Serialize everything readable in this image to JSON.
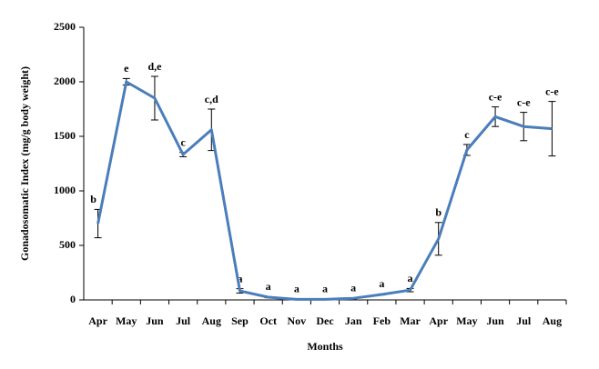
{
  "chart_data": {
    "type": "line",
    "x_label": "Months",
    "y_label": "Gonadosomatic Index (mg/g body weight)",
    "categories": [
      "Apr",
      "May",
      "Jun",
      "Jul",
      "Aug",
      "Sep",
      "Oct",
      "Nov",
      "Dec",
      "Jan",
      "Feb",
      "Mar",
      "Apr",
      "May",
      "Jun",
      "Jul",
      "Aug"
    ],
    "series": [
      {
        "color": "#4a7ebb",
        "values": [
          700,
          2000,
          1850,
          1333,
          1560,
          83,
          25,
          5,
          5,
          15,
          50,
          90,
          560,
          1375,
          1680,
          1590,
          1570
        ],
        "errors": [
          130,
          30,
          200,
          20,
          190,
          20,
          5,
          5,
          5,
          5,
          5,
          15,
          150,
          50,
          90,
          130,
          250
        ],
        "annotations": [
          "b",
          "e",
          "d,e",
          "c",
          "c,d",
          "a",
          "a",
          "a",
          "a",
          "a",
          "a",
          "a",
          "b",
          "c",
          "c-e",
          "c-e",
          "c-e"
        ]
      }
    ],
    "ylim": [
      0,
      2500
    ],
    "yticks": [
      0,
      500,
      1000,
      1500,
      2000,
      2500
    ]
  }
}
